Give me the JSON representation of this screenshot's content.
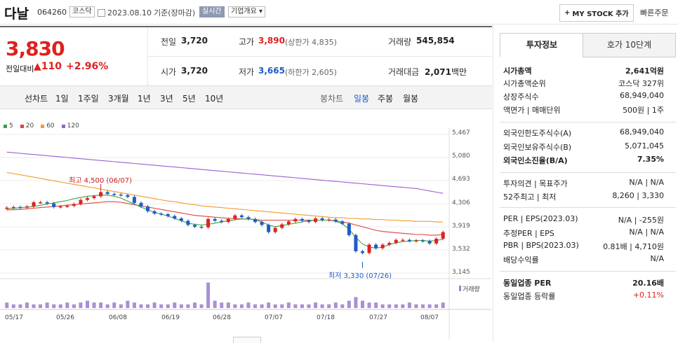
{
  "header": {
    "name": "다날",
    "code": "064260",
    "market": "코스닥",
    "date": "2023.08.10",
    "date_note": "기준(장마감)",
    "realtime": "실시간",
    "overview": "기업개요",
    "my_stock": "MY STOCK 추가",
    "quick_order": "빠른주문"
  },
  "price": {
    "current": "3,830",
    "change_label": "전일대비",
    "change_value": "110",
    "change_pct": "+2.96%"
  },
  "quote": {
    "prev_label": "전일",
    "prev_value": "3,720",
    "high_label": "고가",
    "high_value": "3,890",
    "upper_limit": "(상한가 4,835)",
    "volume_label": "거래량",
    "volume_value": "545,854",
    "open_label": "시가",
    "open_value": "3,720",
    "low_label": "저가",
    "low_value": "3,665",
    "lower_limit": "(하한가 2,605)",
    "amount_label": "거래대금",
    "amount_value": "2,071",
    "amount_unit": "백만"
  },
  "toolbar": {
    "line": "선차트",
    "d1": "1일",
    "w1": "1주일",
    "m3": "3개월",
    "y1": "1년",
    "y3": "3년",
    "y5": "5년",
    "y10": "10년",
    "candle": "봉차트",
    "daily": "일봉",
    "weekly": "주봉",
    "monthly": "월봉"
  },
  "chart_data": {
    "type": "candlestick",
    "legend": [
      {
        "name": "5",
        "color": "#3aa33a"
      },
      {
        "name": "20",
        "color": "#e04040"
      },
      {
        "name": "60",
        "color": "#f39a2a"
      },
      {
        "name": "120",
        "color": "#9a5fd0"
      }
    ],
    "y_ticks": [
      "5,467",
      "5,080",
      "4,693",
      "4,306",
      "3,919",
      "3,532",
      "3,145"
    ],
    "ylim": [
      3145,
      5467
    ],
    "x_ticks": [
      "05/17",
      "05/26",
      "06/08",
      "06/19",
      "06/28",
      "07/07",
      "07/18",
      "07/27",
      "08/07"
    ],
    "annotations": {
      "high": "최고 4,500 (06/07)",
      "low": "최저 3,330 (07/26)"
    },
    "volume_label": "거래량",
    "closes": [
      4240,
      4250,
      4240,
      4260,
      4330,
      4330,
      4310,
      4250,
      4260,
      4270,
      4300,
      4370,
      4400,
      4430,
      4500,
      4470,
      4460,
      4450,
      4420,
      4320,
      4260,
      4180,
      4140,
      4130,
      4100,
      4060,
      4020,
      3950,
      3920,
      3910,
      4050,
      4020,
      4000,
      4050,
      4110,
      4080,
      4050,
      4000,
      3950,
      3830,
      3900,
      3960,
      4010,
      4050,
      4020,
      4000,
      4060,
      4030,
      4040,
      4010,
      3970,
      3780,
      3510,
      3480,
      3620,
      3560,
      3620,
      3650,
      3700,
      3700,
      3680,
      3690,
      3680,
      3640,
      3720,
      3830
    ],
    "ma5": [
      4220,
      4230,
      4240,
      4250,
      4260,
      4280,
      4300,
      4320,
      4340,
      4360,
      4390,
      4410,
      4430,
      4440,
      4450,
      4450,
      4430,
      4400,
      4350,
      4300,
      4250,
      4200,
      4160,
      4130,
      4100,
      4060,
      4020,
      3980,
      3960,
      3950,
      3960,
      3980,
      4000,
      4020,
      4040,
      4050,
      4050,
      4040,
      4000,
      3950,
      3920,
      3940,
      3960,
      3980,
      4000,
      4020,
      4030,
      4030,
      4030,
      4010,
      3970,
      3880,
      3740,
      3630,
      3580,
      3560,
      3580,
      3620,
      3650,
      3670,
      3680,
      3690,
      3690,
      3680,
      3690,
      3710
    ],
    "ma20": [
      4200,
      4205,
      4210,
      4220,
      4230,
      4240,
      4250,
      4260,
      4270,
      4280,
      4290,
      4300,
      4310,
      4320,
      4330,
      4340,
      4340,
      4330,
      4310,
      4290,
      4270,
      4250,
      4230,
      4210,
      4190,
      4170,
      4150,
      4130,
      4110,
      4100,
      4090,
      4080,
      4070,
      4060,
      4060,
      4050,
      4050,
      4040,
      4030,
      4030,
      4030,
      4030,
      4030,
      4030,
      4030,
      4030,
      4030,
      4030,
      4030,
      4020,
      4000,
      3980,
      3950,
      3920,
      3890,
      3860,
      3840,
      3830,
      3820,
      3810,
      3800,
      3790,
      3790,
      3780,
      3780,
      3790
    ],
    "ma60": [
      4830,
      4810,
      4790,
      4770,
      4750,
      4730,
      4710,
      4690,
      4670,
      4650,
      4630,
      4610,
      4590,
      4570,
      4550,
      4530,
      4510,
      4490,
      4470,
      4450,
      4430,
      4410,
      4390,
      4370,
      4350,
      4340,
      4320,
      4300,
      4290,
      4270,
      4260,
      4250,
      4240,
      4230,
      4220,
      4210,
      4200,
      4190,
      4180,
      4170,
      4160,
      4150,
      4140,
      4130,
      4120,
      4110,
      4100,
      4090,
      4080,
      4070,
      4070,
      4060,
      4060,
      4050,
      4050,
      4040,
      4040,
      4030,
      4030,
      4020,
      4020,
      4010,
      4010,
      4010,
      4000,
      4000
    ],
    "ma120": [
      5170,
      5160,
      5150,
      5140,
      5130,
      5120,
      5110,
      5100,
      5090,
      5080,
      5070,
      5060,
      5050,
      5040,
      5030,
      5020,
      5010,
      5000,
      4990,
      4980,
      4970,
      4960,
      4950,
      4940,
      4930,
      4920,
      4910,
      4900,
      4890,
      4880,
      4870,
      4860,
      4850,
      4840,
      4830,
      4820,
      4810,
      4800,
      4790,
      4780,
      4770,
      4760,
      4750,
      4740,
      4730,
      4720,
      4710,
      4700,
      4690,
      4680,
      4670,
      4660,
      4650,
      4640,
      4630,
      4620,
      4610,
      4600,
      4590,
      4580,
      4570,
      4560,
      4540,
      4520,
      4500,
      4480
    ],
    "volumes": [
      3,
      2,
      2,
      3,
      2,
      2,
      3,
      2,
      2,
      3,
      2,
      3,
      4,
      3,
      3,
      2,
      3,
      2,
      4,
      3,
      2,
      2,
      3,
      2,
      2,
      3,
      2,
      2,
      3,
      2,
      14,
      4,
      3,
      3,
      2,
      2,
      3,
      2,
      2,
      3,
      2,
      2,
      3,
      2,
      2,
      2,
      3,
      2,
      2,
      3,
      2,
      4,
      6,
      4,
      3,
      3,
      2,
      2,
      2,
      2,
      3,
      2,
      2,
      2,
      2,
      3
    ]
  },
  "invest_tabs": {
    "active": "투자정보",
    "other": "호가 10단계"
  },
  "invest": [
    {
      "k": "시가총액",
      "v": "2,641억원",
      "bold": true
    },
    {
      "k": "시가총액순위",
      "v": "코스닥 327위"
    },
    {
      "k": "상장주식수",
      "v": "68,949,040"
    },
    {
      "k": "액면가 | 매매단위",
      "v": "500원 | 1주"
    },
    {
      "k": "외국인한도주식수(A)",
      "v": "68,949,040"
    },
    {
      "k": "외국인보유주식수(B)",
      "v": "5,071,045"
    },
    {
      "k": "외국인소진율(B/A)",
      "v": "7.35%",
      "bold": true
    },
    {
      "k": "투자의견 | 목표주가",
      "v": "N/A | N/A"
    },
    {
      "k": "52주최고 | 최저",
      "v": "8,260 | 3,330"
    },
    {
      "k": "PER | EPS(2023.03)",
      "v": "N/A | -255원"
    },
    {
      "k": "추정PER | EPS",
      "v": "N/A | N/A"
    },
    {
      "k": "PBR | BPS(2023.03)",
      "v": "0.81배 | 4,710원"
    },
    {
      "k": "배당수익률",
      "v": "N/A"
    },
    {
      "k": "동일업종 PER",
      "v": "20.16배",
      "bold": true
    },
    {
      "k": "동일업종 등락률",
      "v": "+0.11%",
      "red": true
    }
  ],
  "colors": {
    "up": "#e02020",
    "down": "#1c5cc8",
    "accent": "#8e9ab1"
  }
}
